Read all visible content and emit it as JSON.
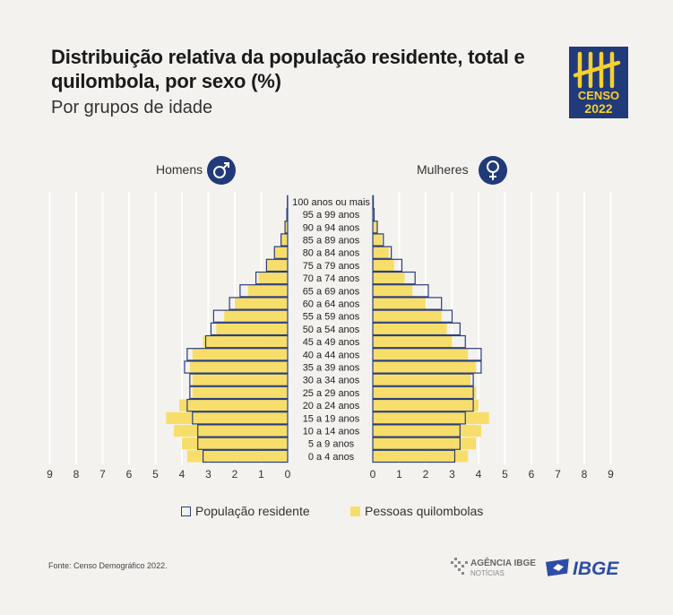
{
  "header": {
    "title": "Distribuição relativa da população residente, total e quilombola, por sexo (%)",
    "subtitle": "Por grupos de idade"
  },
  "logo": {
    "line1": "CENSO",
    "line2": "2022",
    "color_bg": "#203a7a",
    "color_fg": "#f7d031"
  },
  "labels": {
    "men": "Homens",
    "women": "Mulheres"
  },
  "icons": {
    "men": "male-symbol-icon",
    "women": "female-symbol-icon"
  },
  "legend": {
    "total": "População residente",
    "quilombola": "Pessoas quilombolas"
  },
  "footer": {
    "source": "Fonte: Censo Demográfico 2022.",
    "agencia": "AGÊNCIA IBGE",
    "noticias": "NOTÍCIAS",
    "ibge": "IBGE"
  },
  "colors": {
    "total_stroke": "#2b3f7e",
    "quilombola_fill": "#f7de6a",
    "background": "#f3f2ef",
    "grid": "#ffffff"
  },
  "chart_data": {
    "type": "bar",
    "orientation": "horizontal-population-pyramid",
    "categories": [
      "0 a 4 anos",
      "5 a 9 anos",
      "10 a 14 anos",
      "15 a 19 anos",
      "20 a 24 anos",
      "25 a 29 anos",
      "30 a 34 anos",
      "35 a 39 anos",
      "40 a 44 anos",
      "45 a 49 anos",
      "50 a 54 anos",
      "55 a 59 anos",
      "60 a 64 anos",
      "65 a 69 anos",
      "70 a 74 anos",
      "75 a 79 anos",
      "80 a 84 anos",
      "85 a 89 anos",
      "90 a 94 anos",
      "95 a 99 anos",
      "100 anos ou mais"
    ],
    "series": [
      {
        "name": "População residente",
        "sex": "Homens",
        "values": [
          3.2,
          3.4,
          3.4,
          3.6,
          3.8,
          3.7,
          3.7,
          3.9,
          3.8,
          3.1,
          2.9,
          2.8,
          2.2,
          1.8,
          1.2,
          0.8,
          0.5,
          0.25,
          0.1,
          0.03,
          0.01
        ]
      },
      {
        "name": "Pessoas quilombolas",
        "sex": "Homens",
        "values": [
          3.8,
          4.0,
          4.3,
          4.6,
          4.1,
          3.6,
          3.6,
          3.7,
          3.6,
          3.2,
          2.7,
          2.4,
          2.0,
          1.5,
          1.1,
          0.8,
          0.5,
          0.25,
          0.1,
          0.03,
          0.01
        ]
      },
      {
        "name": "População residente",
        "sex": "Mulheres",
        "values": [
          3.1,
          3.3,
          3.3,
          3.5,
          3.8,
          3.8,
          3.8,
          4.1,
          4.1,
          3.5,
          3.3,
          3.0,
          2.6,
          2.1,
          1.6,
          1.1,
          0.7,
          0.4,
          0.17,
          0.05,
          0.02
        ]
      },
      {
        "name": "Pessoas quilombolas",
        "sex": "Mulheres",
        "values": [
          3.6,
          3.9,
          4.1,
          4.4,
          4.0,
          3.9,
          3.7,
          3.9,
          3.6,
          3.0,
          2.8,
          2.6,
          2.0,
          1.5,
          1.2,
          0.8,
          0.6,
          0.35,
          0.16,
          0.04,
          0.02
        ]
      }
    ],
    "xlim": [
      0,
      9
    ],
    "xticks_left": [
      "9",
      "8",
      "7",
      "6",
      "5",
      "4",
      "3",
      "2",
      "1",
      "0"
    ],
    "xticks_right": [
      "0",
      "1",
      "2",
      "3",
      "4",
      "5",
      "6",
      "7",
      "8",
      "9"
    ],
    "grid": true,
    "legend_position": "bottom"
  }
}
